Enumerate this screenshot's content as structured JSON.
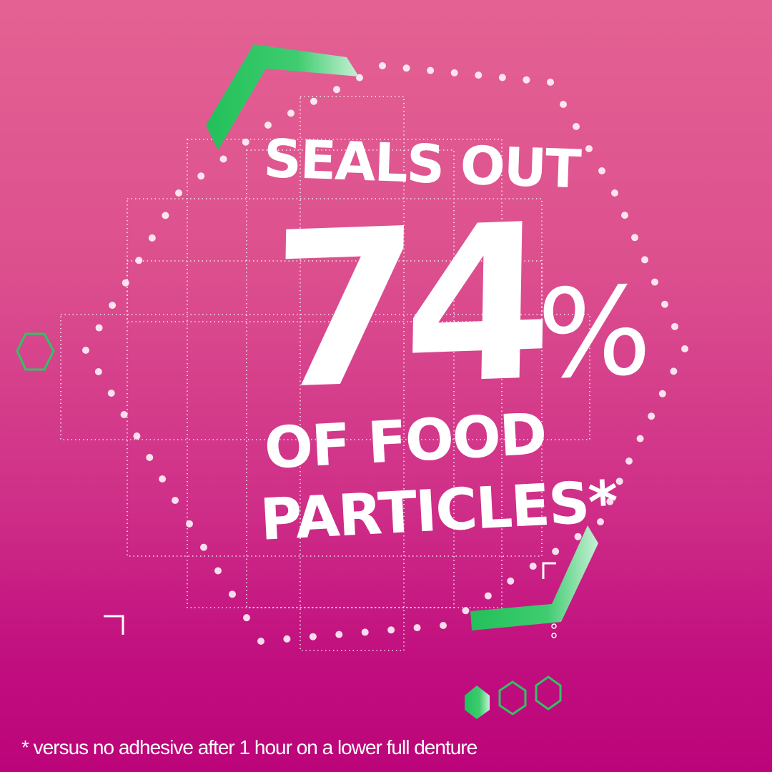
{
  "headline": {
    "line1": "SEALS OUT",
    "number": "74",
    "percent": "%",
    "line3": "OF FOOD",
    "line4": "PARTICLES*"
  },
  "footnote": "* versus no adhesive after 1 hour on a lower full denture",
  "colors": {
    "accent_green": "#2fc463",
    "background_top": "#e46293",
    "background_bottom": "#bb0479",
    "text": "#ffffff"
  }
}
